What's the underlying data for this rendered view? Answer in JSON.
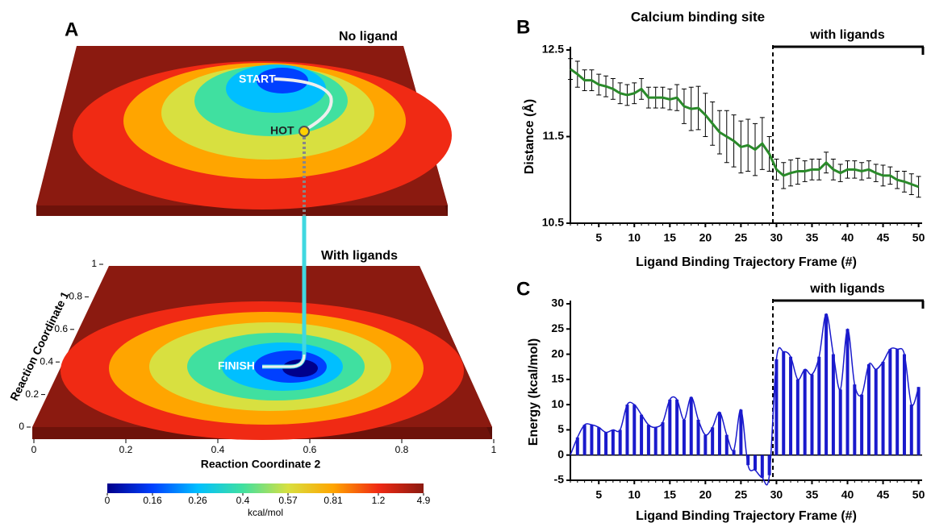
{
  "chart_data": [
    {
      "type": "landscape",
      "panel_label": "A",
      "top_title": "No ligand",
      "bottom_title": "With ligands",
      "path_labels": [
        "START",
        "HOT",
        "FINISH"
      ],
      "xlabel": "Reaction Coordinate 2",
      "ylabel": "Reaction Coordinate 1",
      "xticks": [
        0,
        0.2,
        0.4,
        0.6,
        0.8,
        1
      ],
      "yticks": [
        0,
        0.2,
        0.4,
        0.6,
        0.8,
        1
      ],
      "xlim": [
        0,
        1
      ],
      "ylim": [
        0,
        1
      ],
      "colorbar": {
        "label": "kcal/mol",
        "ticks": [
          0,
          0.16,
          0.26,
          0.4,
          0.57,
          0.81,
          1.2,
          4.9
        ],
        "colors": [
          "#00008b",
          "#0040ff",
          "#00bfff",
          "#40e0a0",
          "#d8e040",
          "#ffa500",
          "#f02a14",
          "#8b1a10"
        ]
      }
    },
    {
      "type": "line",
      "panel_label": "B",
      "title": "Calcium binding site",
      "annotation": "with ligands",
      "xlabel": "Ligand Binding Trajectory Frame (#)",
      "ylabel": "Distance (Å)",
      "color": "#2a8a2a",
      "divider": 29.5,
      "x": [
        1,
        2,
        3,
        4,
        5,
        6,
        7,
        8,
        9,
        10,
        11,
        12,
        13,
        14,
        15,
        16,
        17,
        18,
        19,
        20,
        21,
        22,
        23,
        24,
        25,
        26,
        27,
        28,
        29,
        30,
        31,
        32,
        33,
        34,
        35,
        36,
        37,
        38,
        39,
        40,
        41,
        42,
        43,
        44,
        45,
        46,
        47,
        48,
        49,
        50
      ],
      "values": [
        12.28,
        12.22,
        12.15,
        12.15,
        12.1,
        12.08,
        12.05,
        12.0,
        11.98,
        12.0,
        12.05,
        11.95,
        11.95,
        11.95,
        11.93,
        11.95,
        11.85,
        11.82,
        11.83,
        11.75,
        11.65,
        11.55,
        11.5,
        11.45,
        11.38,
        11.4,
        11.35,
        11.42,
        11.3,
        11.12,
        11.05,
        11.08,
        11.1,
        11.1,
        11.12,
        11.12,
        11.2,
        11.12,
        11.08,
        11.12,
        11.12,
        11.1,
        11.12,
        11.08,
        11.05,
        11.05,
        11.0,
        10.98,
        10.95,
        10.92
      ],
      "errors": [
        0.12,
        0.15,
        0.12,
        0.12,
        0.12,
        0.12,
        0.12,
        0.12,
        0.12,
        0.12,
        0.12,
        0.12,
        0.12,
        0.12,
        0.12,
        0.15,
        0.2,
        0.25,
        0.25,
        0.25,
        0.25,
        0.25,
        0.3,
        0.3,
        0.3,
        0.3,
        0.3,
        0.3,
        0.2,
        0.12,
        0.15,
        0.15,
        0.15,
        0.12,
        0.12,
        0.12,
        0.12,
        0.12,
        0.1,
        0.1,
        0.1,
        0.1,
        0.1,
        0.1,
        0.12,
        0.1,
        0.1,
        0.12,
        0.12,
        0.12
      ],
      "xlim": [
        1,
        50.5
      ],
      "ylim": [
        10.5,
        12.5
      ],
      "xticks": [
        5,
        10,
        15,
        20,
        25,
        30,
        35,
        40,
        45,
        50
      ],
      "yticks": [
        10.5,
        11.5,
        12.5
      ]
    },
    {
      "type": "bar",
      "panel_label": "C",
      "annotation": "with ligands",
      "xlabel": "Ligand Binding Trajectory Frame (#)",
      "ylabel": "Energy (kcal/mol)",
      "color": "#1a1acc",
      "divider": 29.5,
      "x": [
        1,
        2,
        3,
        4,
        5,
        6,
        7,
        8,
        9,
        10,
        11,
        12,
        13,
        14,
        15,
        16,
        17,
        18,
        19,
        20,
        21,
        22,
        23,
        24,
        25,
        26,
        27,
        28,
        29,
        30,
        31,
        32,
        33,
        34,
        35,
        36,
        37,
        38,
        39,
        40,
        41,
        42,
        43,
        44,
        45,
        46,
        47,
        48,
        49,
        50
      ],
      "values": [
        0,
        3.5,
        6,
        6,
        5.5,
        4.5,
        5,
        5,
        10,
        10,
        8,
        6,
        5.5,
        6.5,
        11,
        11,
        7,
        11.5,
        7,
        4,
        5.5,
        8.5,
        4,
        1,
        9,
        -2,
        -3,
        -4.5,
        -4,
        19,
        20.5,
        19.5,
        15,
        17,
        16,
        19.5,
        28,
        20,
        13,
        25,
        14,
        12,
        18,
        17,
        18.5,
        21,
        21,
        20,
        10,
        13.5
      ],
      "xlim": [
        1,
        50.5
      ],
      "ylim": [
        -5,
        30
      ],
      "xticks": [
        5,
        10,
        15,
        20,
        25,
        30,
        35,
        40,
        45,
        50
      ],
      "yticks": [
        -5,
        0,
        5,
        10,
        15,
        20,
        25,
        30
      ]
    }
  ]
}
